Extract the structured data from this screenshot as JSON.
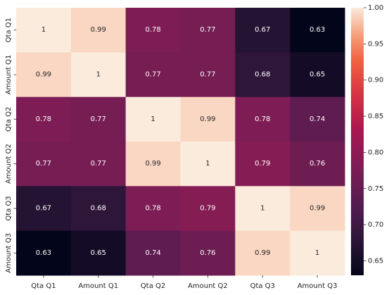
{
  "chart_data": {
    "type": "heatmap",
    "x_labels": [
      "Qta Q1",
      "Amount Q1",
      "Qta Q2",
      "Amount Q2",
      "Qta Q3",
      "Amount Q3"
    ],
    "y_labels": [
      "Qta Q1",
      "Amount Q1",
      "Qta Q2",
      "Amount Q2",
      "Qta Q3",
      "Amount Q3"
    ],
    "values": [
      [
        1,
        0.99,
        0.78,
        0.77,
        0.67,
        0.63
      ],
      [
        0.99,
        1,
        0.77,
        0.77,
        0.68,
        0.65
      ],
      [
        0.78,
        0.77,
        1,
        0.99,
        0.78,
        0.74
      ],
      [
        0.77,
        0.77,
        0.99,
        1,
        0.79,
        0.76
      ],
      [
        0.67,
        0.68,
        0.78,
        0.79,
        1,
        0.99
      ],
      [
        0.63,
        0.65,
        0.74,
        0.76,
        0.99,
        1
      ]
    ],
    "colormap": "rocket",
    "vmin": 0.63,
    "vmax": 1.0,
    "colorbar_ticks": [
      "0.65",
      "0.70",
      "0.75",
      "0.80",
      "0.85",
      "0.90",
      "0.95",
      "1.00"
    ],
    "annotated": true,
    "colorbar_position": "right"
  }
}
